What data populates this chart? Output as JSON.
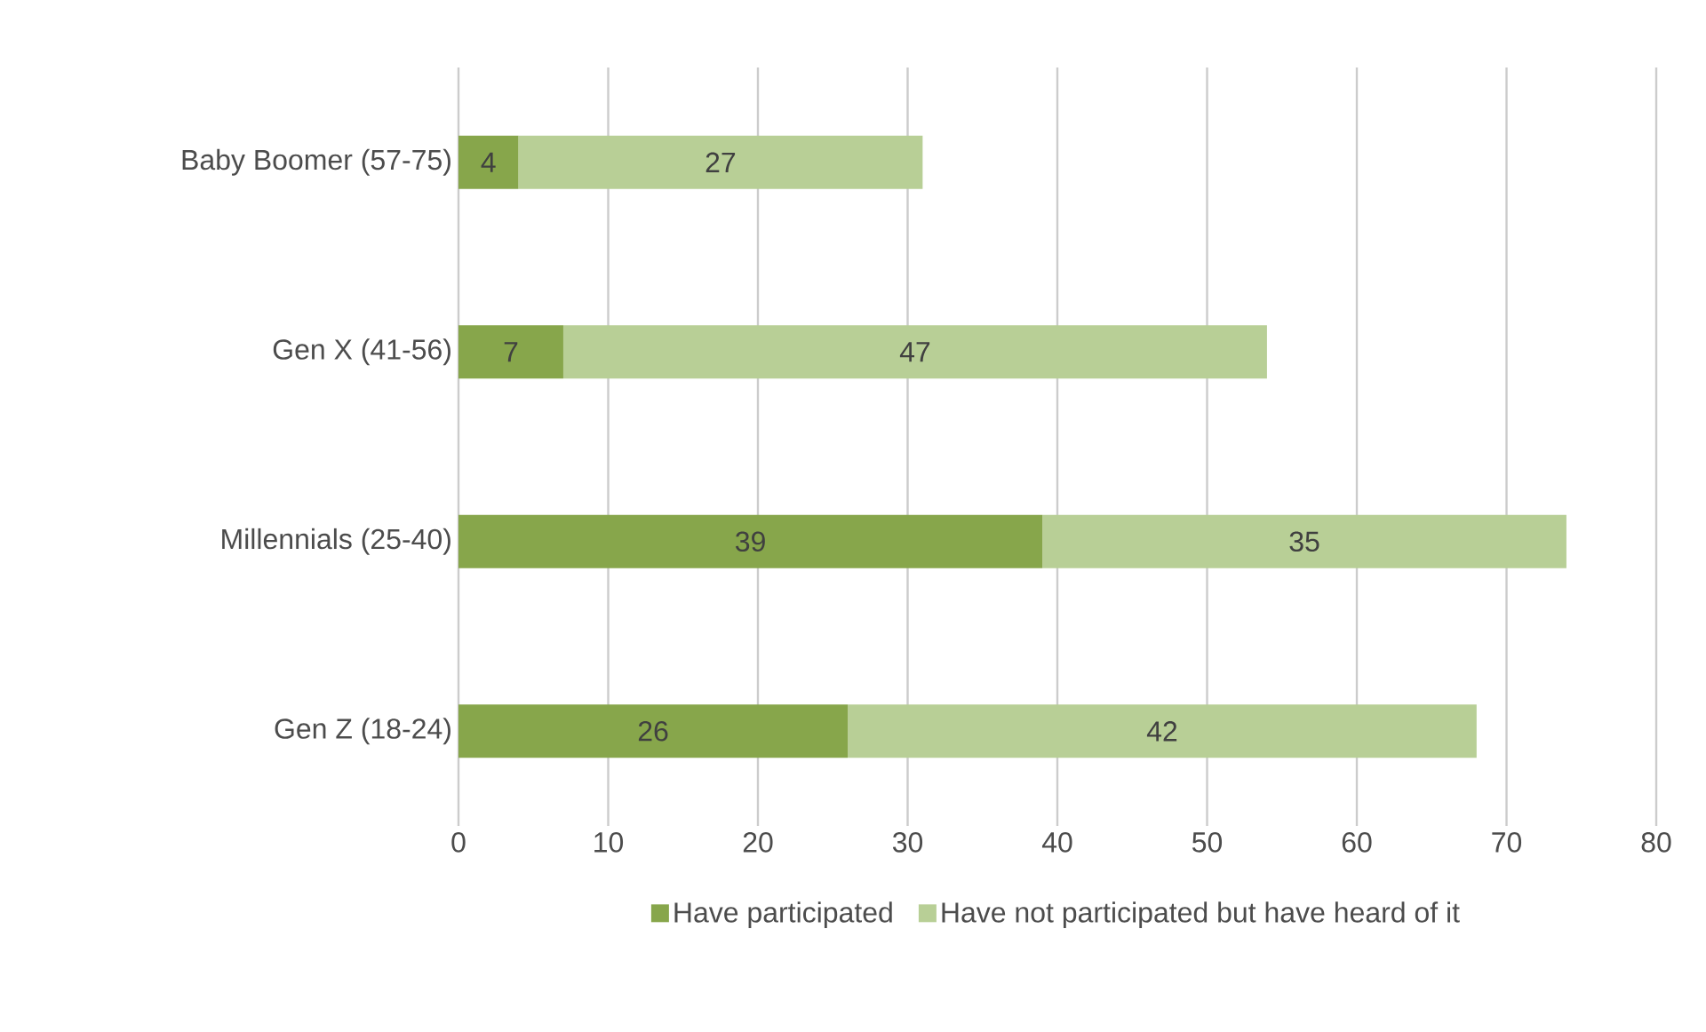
{
  "chart_data": {
    "type": "bar",
    "orientation": "horizontal",
    "stacked": true,
    "categories": [
      "Baby Boomer (57-75)",
      "Gen X (41-56)",
      "Millennials (25-40)",
      "Gen Z (18-24)"
    ],
    "series": [
      {
        "name": "Have participated",
        "color": "#87a64b",
        "values": [
          4,
          7,
          39,
          26
        ]
      },
      {
        "name": "Have not participated but have heard of it",
        "color": "#b8cf96",
        "values": [
          27,
          47,
          35,
          42
        ]
      }
    ],
    "xlim": [
      0,
      80
    ],
    "xticks": [
      0,
      10,
      20,
      30,
      40,
      50,
      60,
      70,
      80
    ],
    "grid": "x",
    "legend": "bottom",
    "data_labels": true
  }
}
